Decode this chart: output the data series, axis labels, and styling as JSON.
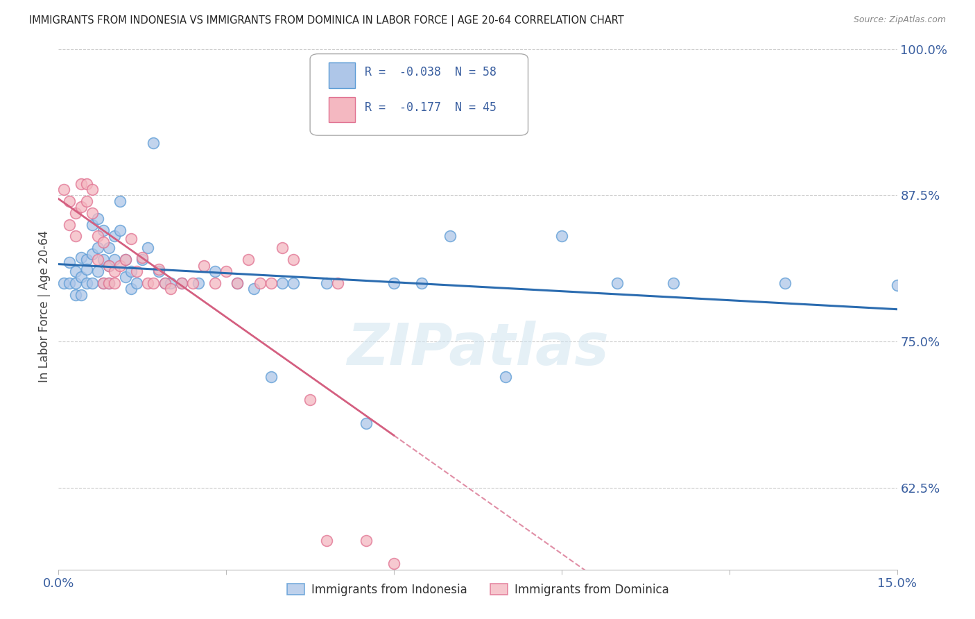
{
  "title": "IMMIGRANTS FROM INDONESIA VS IMMIGRANTS FROM DOMINICA IN LABOR FORCE | AGE 20-64 CORRELATION CHART",
  "source": "Source: ZipAtlas.com",
  "ylabel": "In Labor Force | Age 20-64",
  "xlim": [
    0.0,
    0.15
  ],
  "ylim": [
    0.555,
    1.005
  ],
  "right_yticks": [
    1.0,
    0.875,
    0.75,
    0.625
  ],
  "right_yticklabels": [
    "100.0%",
    "87.5%",
    "75.0%",
    "62.5%"
  ],
  "xtick_vals": [
    0.0,
    0.03,
    0.06,
    0.09,
    0.12,
    0.15
  ],
  "xticklabels": [
    "0.0%",
    "",
    "",
    "",
    "",
    "15.0%"
  ],
  "indonesia_color": "#aec6e8",
  "indonesia_edge": "#5b9bd5",
  "dominica_color": "#f4b8c1",
  "dominica_edge": "#e07090",
  "trend_indo_color": "#2b6cb0",
  "trend_dom_color": "#d45f80",
  "grid_color": "#cccccc",
  "watermark": "ZIPatlas",
  "legend_text_color": "#3a5fa0",
  "indo_R": "-0.038",
  "indo_N": "58",
  "dom_R": "-0.177",
  "dom_N": "45",
  "indo_x": [
    0.001,
    0.002,
    0.002,
    0.003,
    0.003,
    0.003,
    0.004,
    0.004,
    0.004,
    0.005,
    0.005,
    0.005,
    0.006,
    0.006,
    0.006,
    0.007,
    0.007,
    0.007,
    0.008,
    0.008,
    0.008,
    0.009,
    0.009,
    0.009,
    0.01,
    0.01,
    0.011,
    0.011,
    0.012,
    0.012,
    0.013,
    0.013,
    0.014,
    0.015,
    0.016,
    0.017,
    0.018,
    0.019,
    0.02,
    0.022,
    0.025,
    0.028,
    0.032,
    0.035,
    0.038,
    0.04,
    0.042,
    0.048,
    0.055,
    0.06,
    0.065,
    0.07,
    0.08,
    0.09,
    0.1,
    0.11,
    0.13,
    0.15
  ],
  "indo_y": [
    0.8,
    0.818,
    0.8,
    0.8,
    0.81,
    0.79,
    0.822,
    0.805,
    0.79,
    0.82,
    0.8,
    0.812,
    0.85,
    0.825,
    0.8,
    0.855,
    0.83,
    0.81,
    0.845,
    0.82,
    0.8,
    0.83,
    0.815,
    0.8,
    0.84,
    0.82,
    0.87,
    0.845,
    0.82,
    0.805,
    0.81,
    0.795,
    0.8,
    0.82,
    0.83,
    0.92,
    0.81,
    0.8,
    0.8,
    0.8,
    0.8,
    0.81,
    0.8,
    0.795,
    0.72,
    0.8,
    0.8,
    0.8,
    0.68,
    0.8,
    0.8,
    0.84,
    0.72,
    0.84,
    0.8,
    0.8,
    0.8,
    0.798
  ],
  "dom_x": [
    0.001,
    0.002,
    0.002,
    0.003,
    0.003,
    0.004,
    0.004,
    0.005,
    0.005,
    0.006,
    0.006,
    0.007,
    0.007,
    0.008,
    0.008,
    0.009,
    0.009,
    0.01,
    0.01,
    0.011,
    0.012,
    0.013,
    0.014,
    0.015,
    0.016,
    0.017,
    0.018,
    0.019,
    0.02,
    0.022,
    0.024,
    0.026,
    0.028,
    0.03,
    0.032,
    0.034,
    0.036,
    0.038,
    0.04,
    0.042,
    0.045,
    0.048,
    0.05,
    0.055,
    0.06
  ],
  "dom_y": [
    0.88,
    0.87,
    0.85,
    0.86,
    0.84,
    0.885,
    0.865,
    0.885,
    0.87,
    0.88,
    0.86,
    0.84,
    0.82,
    0.835,
    0.8,
    0.815,
    0.8,
    0.81,
    0.8,
    0.815,
    0.82,
    0.838,
    0.81,
    0.822,
    0.8,
    0.8,
    0.812,
    0.8,
    0.795,
    0.8,
    0.8,
    0.815,
    0.8,
    0.81,
    0.8,
    0.82,
    0.8,
    0.8,
    0.83,
    0.82,
    0.7,
    0.58,
    0.8,
    0.58,
    0.56
  ]
}
